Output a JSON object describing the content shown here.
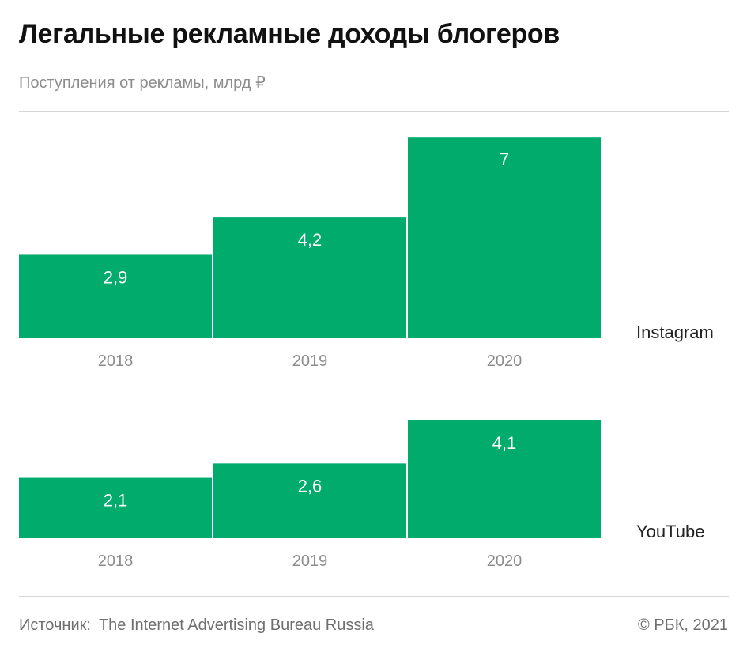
{
  "title": "Легальные рекламные доходы блогеров",
  "subtitle": "Поступления от рекламы, млрд ₽",
  "colors": {
    "bar": "#00ab6c",
    "bar_label": "#ffffff",
    "tick": "#8c8c8c",
    "series_label": "#222222"
  },
  "chart_data": [
    {
      "type": "bar",
      "series_name": "Instagram",
      "categories": [
        "2018",
        "2019",
        "2020"
      ],
      "values": [
        2.9,
        4.2,
        7
      ],
      "value_labels": [
        "2,9",
        "4,2",
        "7"
      ]
    },
    {
      "type": "bar",
      "series_name": "YouTube",
      "categories": [
        "2018",
        "2019",
        "2020"
      ],
      "values": [
        2.1,
        2.6,
        4.1
      ],
      "value_labels": [
        "2,1",
        "2,6",
        "4,1"
      ]
    }
  ],
  "footer": {
    "source_label": "Источник:",
    "source_text": "The Internet Advertising Bureau Russia",
    "copyright": "© РБК, 2021"
  }
}
